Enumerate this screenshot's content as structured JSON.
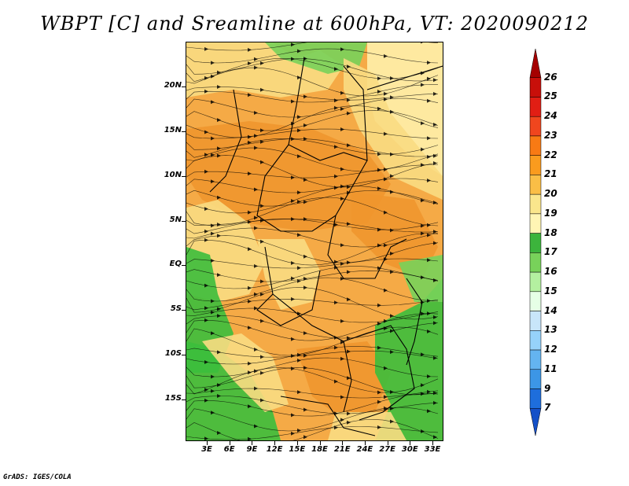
{
  "title": "WBPT [C] and Sreamline at 600hPa, VT: 2020090212",
  "footer": "GrADS: IGES/COLA",
  "lat_labels": [
    "20N",
    "15N",
    "10N",
    "5N",
    "EQ",
    "5S",
    "10S",
    "15S"
  ],
  "lon_labels": [
    "3E",
    "6E",
    "9E",
    "12E",
    "15E",
    "18E",
    "21E",
    "24E",
    "27E",
    "30E",
    "33E"
  ],
  "colorbar": {
    "labels": [
      "26",
      "25",
      "24",
      "23",
      "22",
      "21",
      "20",
      "19",
      "18",
      "17",
      "16",
      "15",
      "14",
      "13",
      "12",
      "11",
      "9",
      "7"
    ],
    "colors": [
      "#a50000",
      "#c80f0a",
      "#e11e14",
      "#f0461e",
      "#f87a14",
      "#fa9b1e",
      "#fabe46",
      "#fae68c",
      "#fff5b4",
      "#3cb43c",
      "#78d25a",
      "#b4f0a0",
      "#e6ffe6",
      "#c8e6fa",
      "#96d2fa",
      "#64b4f0",
      "#3c96e6",
      "#1e6edc",
      "#1450c8"
    ]
  },
  "map_palette": {
    "orange_dark": "#f0962d",
    "orange": "#f5aa46",
    "yellow": "#fadc82",
    "pale": "#fff0aa",
    "green": "#3cbe3c",
    "green_light": "#78d25a",
    "border": "#000000"
  }
}
